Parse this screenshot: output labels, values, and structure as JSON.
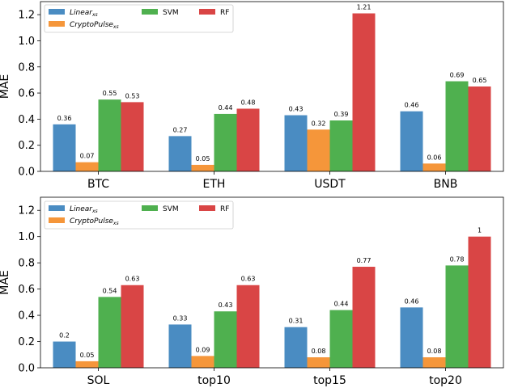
{
  "chart_data": [
    {
      "type": "bar",
      "ylabel": "MAE",
      "ylim": [
        0,
        1.3
      ],
      "yticks": [
        "0.0",
        "0.2",
        "0.4",
        "0.6",
        "0.8",
        "1.0",
        "1.2"
      ],
      "categories": [
        "BTC",
        "ETH",
        "USDT",
        "BNB"
      ],
      "legend_placement": "top-left",
      "series": [
        {
          "name": "Linear",
          "name_sub": "xs",
          "color": "#4a8cc2",
          "values": [
            0.36,
            0.27,
            0.43,
            0.46
          ],
          "labels": [
            "0.36",
            "0.27",
            "0.43",
            "0.46"
          ]
        },
        {
          "name": "CryptoPulse",
          "name_sub": "xs",
          "color": "#f5963a",
          "values": [
            0.07,
            0.05,
            0.32,
            0.06
          ],
          "labels": [
            "0.07",
            "0.05",
            "0.32",
            "0.06"
          ]
        },
        {
          "name": "SVM",
          "name_sub": "",
          "color": "#4fb04f",
          "values": [
            0.55,
            0.44,
            0.39,
            0.69
          ],
          "labels": [
            "0.55",
            "0.44",
            "0.39",
            "0.69"
          ]
        },
        {
          "name": "RF",
          "name_sub": "",
          "color": "#d94545",
          "values": [
            0.53,
            0.48,
            1.21,
            0.65
          ],
          "labels": [
            "0.53",
            "0.48",
            "1.21",
            "0.65"
          ]
        }
      ]
    },
    {
      "type": "bar",
      "ylabel": "MAE",
      "ylim": [
        0,
        1.3
      ],
      "yticks": [
        "0.0",
        "0.2",
        "0.4",
        "0.6",
        "0.8",
        "1.0",
        "1.2"
      ],
      "categories": [
        "SOL",
        "top10",
        "top15",
        "top20"
      ],
      "legend_placement": "top-left",
      "series": [
        {
          "name": "Linear",
          "name_sub": "xs",
          "color": "#4a8cc2",
          "values": [
            0.2,
            0.33,
            0.31,
            0.46
          ],
          "labels": [
            "0.2",
            "0.33",
            "0.31",
            "0.46"
          ]
        },
        {
          "name": "CryptoPulse",
          "name_sub": "xs",
          "color": "#f5963a",
          "values": [
            0.05,
            0.09,
            0.08,
            0.08
          ],
          "labels": [
            "0.05",
            "0.09",
            "0.08",
            "0.08"
          ]
        },
        {
          "name": "SVM",
          "name_sub": "",
          "color": "#4fb04f",
          "values": [
            0.54,
            0.43,
            0.44,
            0.78
          ],
          "labels": [
            "0.54",
            "0.43",
            "0.44",
            "0.78"
          ]
        },
        {
          "name": "RF",
          "name_sub": "",
          "color": "#d94545",
          "values": [
            0.63,
            0.63,
            0.77,
            1.0
          ],
          "labels": [
            "0.63",
            "0.63",
            "0.77",
            "1"
          ]
        }
      ]
    }
  ]
}
